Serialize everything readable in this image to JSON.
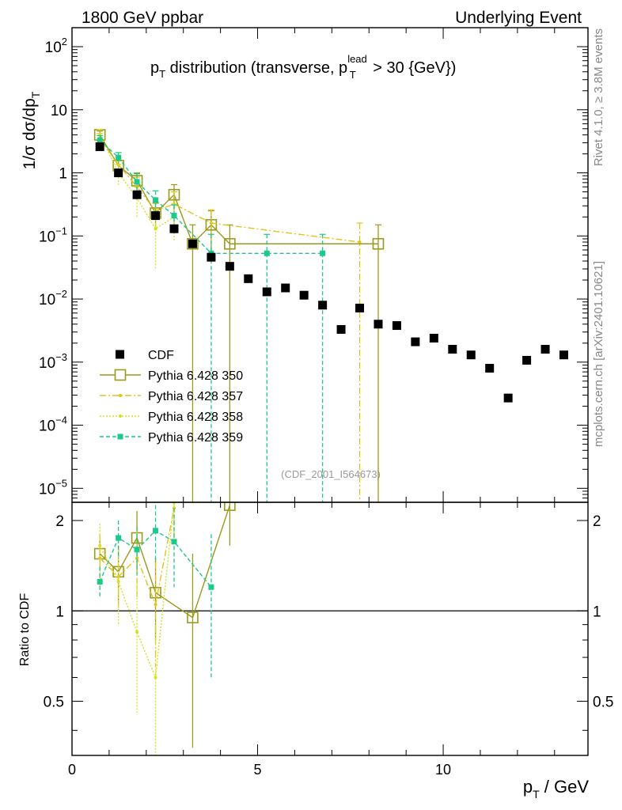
{
  "header": {
    "left_label": "1800 GeV ppbar",
    "right_label": "Underlying Event"
  },
  "side_labels": {
    "top": "Rivet 4.1.0, ≥ 3.8M events",
    "bottom": "mcplots.cern.ch [arXiv:2401.10621]"
  },
  "chart_data": {
    "type": "scatter",
    "title": "pT distribution (transverse, pT lead > 30 {GeV})",
    "title_parts": {
      "main": "p",
      "sub": "T",
      "mid": " distribution (transverse, p",
      "sup2": "lead",
      "sub2": "T",
      "tail": " > 30 {GeV})"
    },
    "watermark": "(CDF_2001_I564673)",
    "ylabel": "1/σ  dσ/dpT",
    "ylabel_parts": {
      "main": "1/σ  dσ/dp",
      "sub": "T"
    },
    "xlabel": "pT / GeV",
    "xlabel_parts": {
      "main": "p",
      "sub": "T",
      "tail": " / GeV"
    },
    "ratio_ylabel": "Ratio to CDF",
    "xlim": [
      0,
      13.9
    ],
    "ylim": [
      6e-06,
      200
    ],
    "ylog": true,
    "ratio_ylim": [
      0.33,
      2.3
    ],
    "x_ticks": [
      {
        "value": 0,
        "label": "0"
      },
      {
        "value": 5,
        "label": "5"
      },
      {
        "value": 10,
        "label": "10"
      }
    ],
    "y_ticks": [
      {
        "value": 1e-05,
        "base": "10",
        "exp": "−5"
      },
      {
        "value": 0.0001,
        "base": "10",
        "exp": "−4"
      },
      {
        "value": 0.001,
        "base": "10",
        "exp": "−3"
      },
      {
        "value": 0.01,
        "base": "10",
        "exp": "−2"
      },
      {
        "value": 0.1,
        "base": "10",
        "exp": "−1"
      },
      {
        "value": 1,
        "base": "1",
        "exp": ""
      },
      {
        "value": 10,
        "base": "10",
        "exp": ""
      },
      {
        "value": 100,
        "base": "10",
        "exp": "2"
      }
    ],
    "ratio_ticks": [
      {
        "value": 0.5,
        "label": "0.5"
      },
      {
        "value": 1,
        "label": "1"
      },
      {
        "value": 2,
        "label": "2"
      }
    ],
    "legend_position": "lower-left",
    "data_series": {
      "name": "CDF",
      "color": "#000000",
      "x": [
        0.75,
        1.25,
        1.75,
        2.25,
        2.75,
        3.25,
        3.75,
        4.25,
        4.75,
        5.25,
        5.75,
        6.25,
        6.75,
        7.25,
        7.75,
        8.25,
        8.75,
        9.25,
        9.75,
        10.25,
        10.75,
        11.25,
        11.75,
        12.25,
        12.75,
        13.25
      ],
      "y": [
        2.6,
        1.0,
        0.45,
        0.21,
        0.13,
        0.075,
        0.046,
        0.033,
        0.021,
        0.013,
        0.015,
        0.0115,
        0.008,
        0.0033,
        0.0072,
        0.004,
        0.0038,
        0.0021,
        0.0024,
        0.0016,
        0.0013,
        0.0008,
        0.00027,
        0.00107,
        0.0016,
        0.0013
      ]
    },
    "series": [
      {
        "name": "Pythia 6.428 350",
        "color": "#9a9a1c",
        "style": "solid",
        "marker": "open-square",
        "x": [
          0.75,
          1.25,
          1.75,
          2.25,
          2.75,
          3.25,
          3.75,
          4.25,
          8.25
        ],
        "y": [
          4.0,
          1.3,
          0.75,
          0.23,
          0.45,
          0.075,
          0.15,
          0.075,
          0.075
        ],
        "yerr": [
          0.6,
          0.3,
          0.25,
          0.1,
          0.2,
          0.075,
          0.1,
          0.075,
          0.075
        ],
        "ratio_x": [
          0.75,
          1.25,
          1.75,
          2.25,
          3.25,
          4.25
        ],
        "ratio": [
          1.55,
          1.35,
          1.75,
          1.15,
          0.95,
          2.25
        ],
        "ratio_err": [
          0.18,
          0.3,
          0.4,
          0.35,
          0.6,
          0.6
        ]
      },
      {
        "name": "Pythia 6.428 357",
        "color": "#e0c41c",
        "style": "dashdot",
        "marker": "small-dot",
        "x": [
          0.75,
          1.25,
          1.75,
          2.25,
          2.75,
          3.75,
          7.75
        ],
        "y": [
          3.5,
          1.35,
          0.6,
          0.25,
          0.32,
          0.16,
          0.08
        ],
        "yerr": [
          0.7,
          0.4,
          0.25,
          0.15,
          0.18,
          0.1,
          0.08
        ],
        "ratio_x": [
          0.75,
          1.25,
          1.75,
          2.25,
          2.75
        ],
        "ratio": [
          1.5,
          1.3,
          1.5,
          1.05,
          2.2
        ],
        "ratio_err": [
          0.3,
          0.3,
          0.4,
          0.4,
          0.5
        ]
      },
      {
        "name": "Pythia 6.428 358",
        "color": "#d6e01c",
        "style": "dotted",
        "marker": "small-dot",
        "x": [
          0.75,
          1.25,
          1.75,
          2.25,
          2.75
        ],
        "y": [
          4.0,
          1.0,
          0.4,
          0.13,
          0.2
        ],
        "yerr": [
          0.9,
          0.35,
          0.2,
          0.1,
          0.12
        ],
        "ratio_x": [
          0.75,
          1.25,
          1.75,
          2.25,
          2.75
        ],
        "ratio": [
          1.65,
          1.25,
          0.85,
          0.6,
          2.3
        ],
        "ratio_err": [
          0.3,
          0.35,
          0.4,
          0.3,
          0.5
        ]
      },
      {
        "name": "Pythia 6.428 359",
        "color": "#1cc88a",
        "style": "dashed",
        "marker": "filled-square",
        "x": [
          0.75,
          1.25,
          1.75,
          2.25,
          2.75,
          3.75,
          5.25,
          6.75
        ],
        "y": [
          3.3,
          1.75,
          0.72,
          0.37,
          0.21,
          0.053,
          0.053,
          0.053
        ],
        "yerr": [
          0.6,
          0.35,
          0.25,
          0.15,
          0.1,
          0.053,
          0.053,
          0.053
        ],
        "ratio_x": [
          0.75,
          1.25,
          1.75,
          2.25,
          2.75,
          3.75
        ],
        "ratio": [
          1.25,
          1.75,
          1.6,
          1.85,
          1.7,
          1.2
        ],
        "ratio_err": [
          0.15,
          0.25,
          0.3,
          0.4,
          0.5,
          0.6
        ]
      }
    ]
  }
}
